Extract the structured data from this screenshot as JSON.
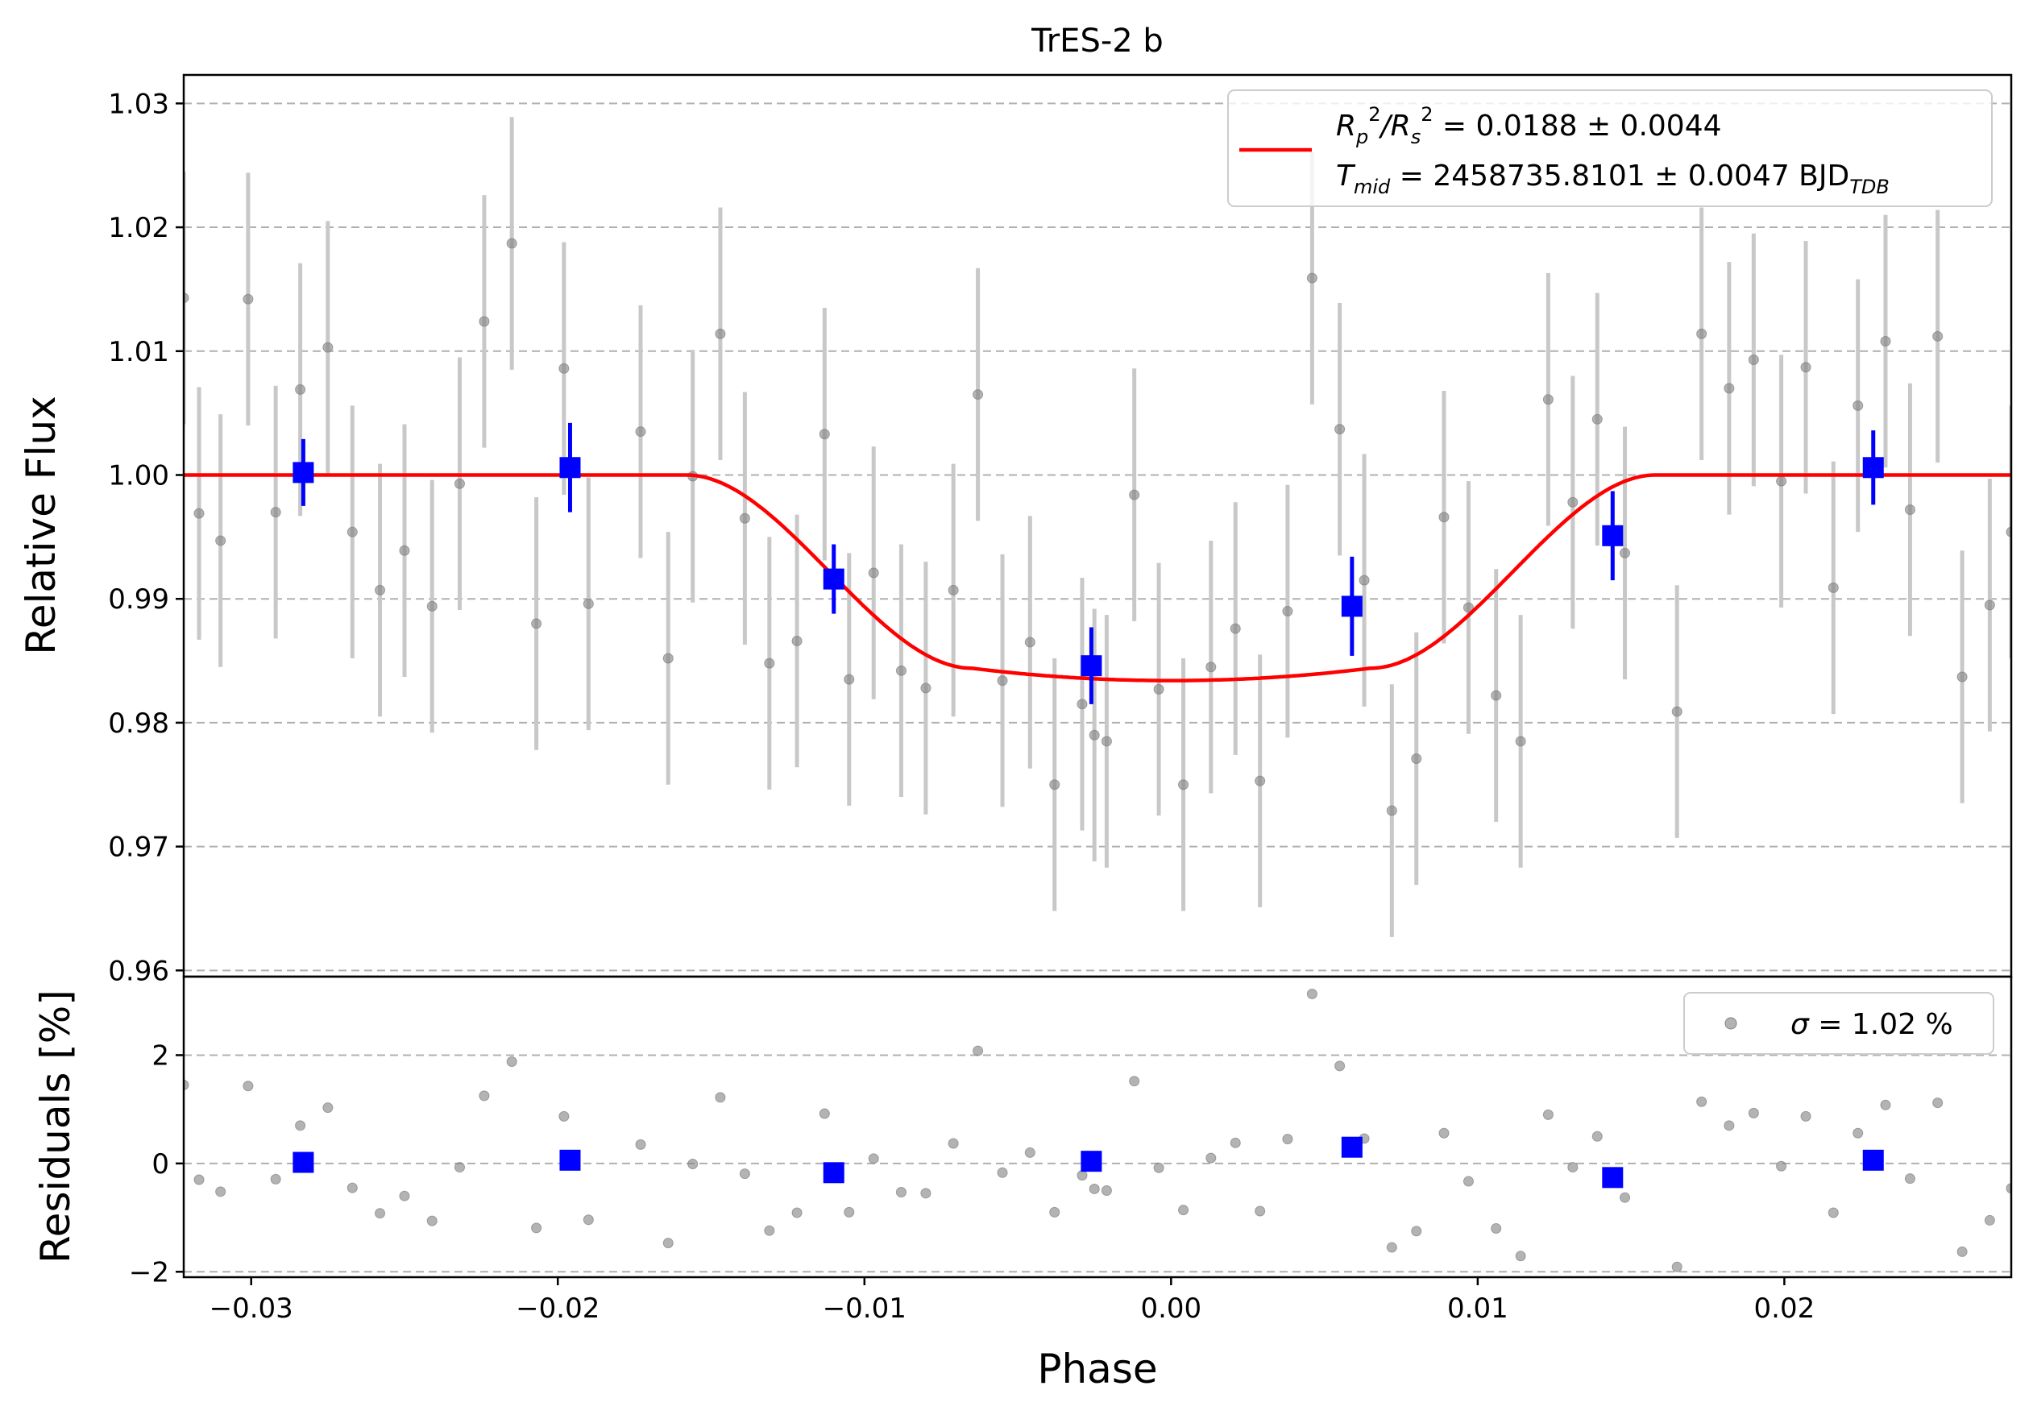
{
  "chart_data": [
    {
      "type": "scatter",
      "panel": "main",
      "title": "TrES-2 b",
      "xlabel": "",
      "ylabel": "Relative Flux",
      "xlim": [
        -0.0322,
        0.0274
      ],
      "ylim": [
        0.9595,
        1.0323
      ],
      "grid": "horizontal dashed",
      "legend_position": "top-right",
      "yticks": [
        0.96,
        0.97,
        0.98,
        0.99,
        1.0,
        1.01,
        1.02,
        1.03
      ],
      "ytick_labels": [
        "0.96",
        "0.97",
        "0.98",
        "0.99",
        "1.00",
        "1.01",
        "1.02",
        "1.03"
      ],
      "legend": {
        "line1_main": "R",
        "line1_sub_p": "p",
        "line1_sup": "2",
        "line1_slash": "/R",
        "line1_sub_s": "s",
        "line1_value": " = 0.0188 ± 0.0044",
        "line2_main": "T",
        "line2_sub": "mid",
        "line2_value": " = 2458735.8101 ± 0.0047 BJD",
        "line2_unit_sub": "TDB"
      },
      "colors": {
        "data": "#808080",
        "errorbar": "#c8c8c8",
        "binned": "#0000ff",
        "model": "#ff0000",
        "grid": "#b0b0b0"
      },
      "model": {
        "name": "transit model",
        "baseline": 1.0,
        "depth": 0.0166,
        "ingress_start": -0.0158,
        "flat_bottom_start": -0.0065,
        "flat_bottom_end": 0.0065,
        "egress_end": 0.0158
      },
      "data_points": {
        "x": [
          -0.0322,
          -0.0317,
          -0.031,
          -0.0301,
          -0.0292,
          -0.0284,
          -0.0275,
          -0.0267,
          -0.0258,
          -0.025,
          -0.0241,
          -0.0232,
          -0.0224,
          -0.0215,
          -0.0207,
          -0.0198,
          -0.019,
          -0.0173,
          -0.0164,
          -0.0156,
          -0.0147,
          -0.0139,
          -0.0131,
          -0.0122,
          -0.0113,
          -0.0105,
          -0.0097,
          -0.0088,
          -0.008,
          -0.0071,
          -0.0063,
          -0.0055,
          -0.0046,
          -0.0038,
          -0.0029,
          -0.0025,
          -0.0021,
          -0.0012,
          -0.0004,
          0.0004,
          0.0013,
          0.0021,
          0.0029,
          0.0038,
          0.0046,
          0.0055,
          0.0063,
          0.0072,
          0.008,
          0.0089,
          0.0097,
          0.0106,
          0.0114,
          0.0123,
          0.0131,
          0.0139,
          0.0148,
          0.0165,
          0.0173,
          0.0182,
          0.019,
          0.0199,
          0.0207,
          0.0216,
          0.0224,
          0.0233,
          0.0241,
          0.025,
          0.0258,
          0.0267,
          0.0274
        ],
        "y": [
          1.0143,
          0.9969,
          0.9947,
          1.0142,
          0.997,
          1.0069,
          1.0103,
          0.9954,
          0.9907,
          0.9939,
          0.9894,
          0.9993,
          1.0124,
          1.0187,
          0.988,
          1.0086,
          0.9896,
          1.0035,
          0.9852,
          0.9999,
          1.0114,
          0.9965,
          0.9848,
          0.9866,
          1.0033,
          0.9835,
          0.9921,
          0.9842,
          0.9828,
          0.9907,
          1.0065,
          0.9834,
          0.9865,
          0.975,
          0.9815,
          0.979,
          0.9785,
          0.9984,
          0.9827,
          0.975,
          0.9845,
          0.9876,
          0.9753,
          0.989,
          1.0159,
          1.0037,
          0.9915,
          0.9729,
          0.9771,
          0.9966,
          0.9893,
          0.9822,
          0.9785,
          1.0061,
          0.9978,
          1.0045,
          0.9937,
          0.9809,
          1.0114,
          1.007,
          1.0093,
          0.9995,
          1.0087,
          0.9909,
          1.0056,
          1.0108,
          0.9972,
          1.0112,
          0.9837,
          0.9895,
          0.9954
        ],
        "yerr": 0.0102
      },
      "binned_points": {
        "x": [
          -0.0283,
          -0.0196,
          -0.011,
          -0.0026,
          0.0059,
          0.0144,
          0.0229
        ],
        "y": [
          1.0002,
          1.0006,
          0.9916,
          0.9846,
          0.9894,
          0.9951,
          1.0006
        ],
        "yerr": [
          0.0027,
          0.0036,
          0.0028,
          0.0031,
          0.004,
          0.0036,
          0.003
        ]
      }
    },
    {
      "type": "scatter",
      "panel": "residuals",
      "xlabel": "Phase",
      "ylabel": "Residuals [%]",
      "xlim": [
        -0.0322,
        0.0274
      ],
      "ylim": [
        -2.1,
        3.45
      ],
      "grid": "horizontal dashed",
      "legend_position": "top-right",
      "xticks": [
        -0.03,
        -0.02,
        -0.01,
        0.0,
        0.01,
        0.02
      ],
      "xtick_labels": [
        "−0.03",
        "−0.02",
        "−0.01",
        "0.00",
        "0.01",
        "0.02"
      ],
      "yticks": [
        -2,
        0,
        2
      ],
      "ytick_labels": [
        "−2",
        "0",
        "2"
      ],
      "legend": {
        "sigma_symbol": "σ",
        "sigma_value": " = 1.02 %"
      },
      "data_points": {
        "x": [
          -0.0322,
          -0.0317,
          -0.031,
          -0.0301,
          -0.0292,
          -0.0284,
          -0.0275,
          -0.0267,
          -0.0258,
          -0.025,
          -0.0241,
          -0.0232,
          -0.0224,
          -0.0215,
          -0.0207,
          -0.0198,
          -0.019,
          -0.0173,
          -0.0164,
          -0.0156,
          -0.0147,
          -0.0139,
          -0.0131,
          -0.0122,
          -0.0113,
          -0.0105,
          -0.0097,
          -0.0088,
          -0.008,
          -0.0071,
          -0.0063,
          -0.0055,
          -0.0046,
          -0.0038,
          -0.0029,
          -0.0025,
          -0.0021,
          -0.0012,
          -0.0004,
          0.0004,
          0.0013,
          0.0021,
          0.0029,
          0.0038,
          0.0046,
          0.0055,
          0.0063,
          0.0072,
          0.008,
          0.0089,
          0.0097,
          0.0106,
          0.0114,
          0.0123,
          0.0131,
          0.0139,
          0.0148,
          0.0165,
          0.0173,
          0.0182,
          0.019,
          0.0199,
          0.0207,
          0.0216,
          0.0224,
          0.0233,
          0.0241,
          0.025,
          0.0258,
          0.0267,
          0.0274
        ],
        "y": [
          1.45,
          -0.3,
          -0.52,
          1.43,
          -0.29,
          0.7,
          1.03,
          -0.45,
          -0.92,
          -0.6,
          -1.06,
          -0.07,
          1.25,
          1.88,
          -1.19,
          0.87,
          -1.04,
          0.35,
          -1.47,
          -0.01,
          1.22,
          -0.19,
          -1.24,
          -0.91,
          0.92,
          -0.9,
          0.09,
          -0.53,
          -0.55,
          0.37,
          2.08,
          -0.17,
          0.2,
          -0.9,
          -0.22,
          -0.47,
          -0.5,
          1.52,
          -0.08,
          -0.86,
          0.1,
          0.38,
          -0.88,
          0.45,
          3.13,
          1.8,
          0.46,
          -1.55,
          -1.25,
          0.56,
          -0.33,
          -1.2,
          -1.71,
          0.9,
          -0.07,
          0.5,
          -0.63,
          -1.91,
          1.14,
          0.7,
          0.93,
          -0.05,
          0.87,
          -0.91,
          0.56,
          1.08,
          -0.28,
          1.12,
          -1.63,
          -1.05,
          -0.46
        ]
      },
      "binned_points": {
        "x": [
          -0.0283,
          -0.0196,
          -0.011,
          -0.0026,
          0.0059,
          0.0144,
          0.0229
        ],
        "y": [
          0.02,
          0.06,
          -0.17,
          0.04,
          0.3,
          -0.26,
          0.06
        ]
      }
    }
  ]
}
